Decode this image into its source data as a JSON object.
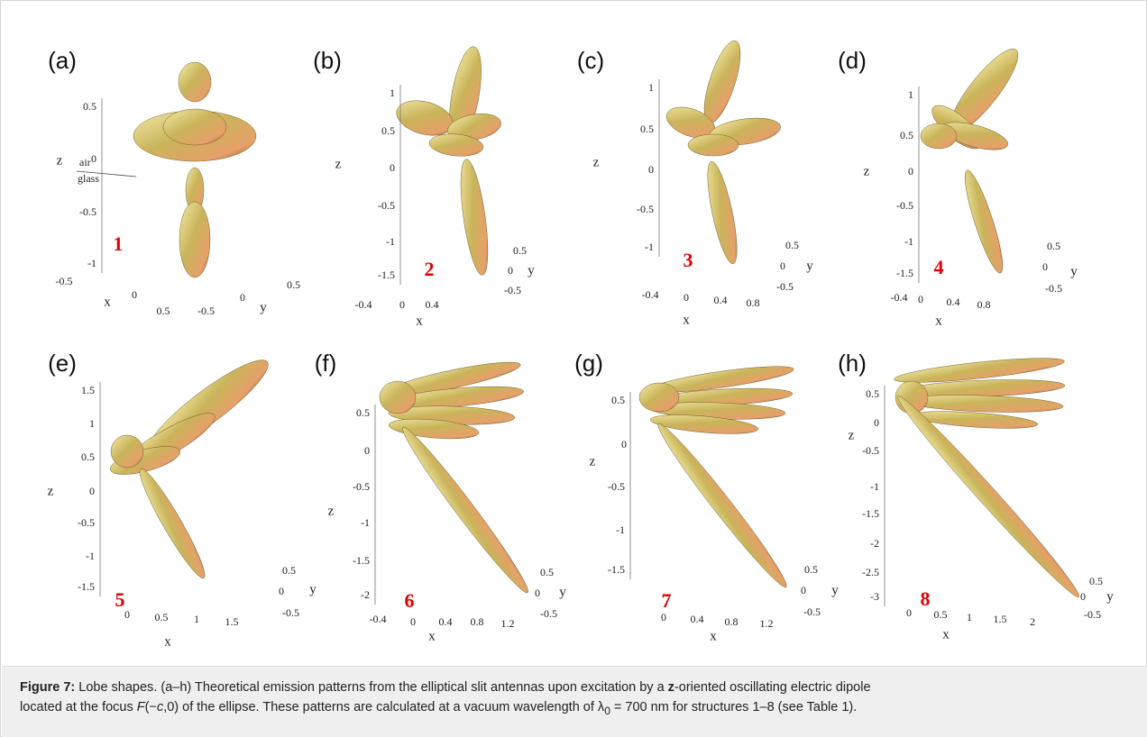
{
  "figure": {
    "panels": [
      {
        "label": "(a)",
        "number": "1",
        "z_label": "z",
        "x_label": "x",
        "y_label": "y",
        "z_ticks": [
          "0.5",
          "0",
          "-0.5",
          "-1"
        ],
        "x_ticks": [
          "-0.5",
          "0",
          "0.5"
        ],
        "y_ticks": [
          "-0.5",
          "0",
          "0.5"
        ],
        "annotations": [
          "air",
          "glass"
        ]
      },
      {
        "label": "(b)",
        "number": "2",
        "z_label": "z",
        "x_label": "x",
        "y_label": "y",
        "z_ticks": [
          "1",
          "0.5",
          "0",
          "-0.5",
          "-1",
          "-1.5"
        ],
        "x_ticks": [
          "-0.4",
          "0",
          "0.4"
        ],
        "y_ticks": [
          "0.5",
          "0",
          "-0.5"
        ]
      },
      {
        "label": "(c)",
        "number": "3",
        "z_label": "z",
        "x_label": "x",
        "y_label": "y",
        "z_ticks": [
          "1",
          "0.5",
          "0",
          "-0.5",
          "-1"
        ],
        "x_ticks": [
          "-0.4",
          "0",
          "0.4",
          "0.8"
        ],
        "y_ticks": [
          "0.5",
          "0",
          "-0.5"
        ]
      },
      {
        "label": "(d)",
        "number": "4",
        "z_label": "z",
        "x_label": "x",
        "y_label": "y",
        "z_ticks": [
          "1",
          "0.5",
          "0",
          "-0.5",
          "-1",
          "-1.5"
        ],
        "x_ticks": [
          "-0.4",
          "0",
          "0.4",
          "0.8"
        ],
        "y_ticks": [
          "0.5",
          "0",
          "-0.5"
        ]
      },
      {
        "label": "(e)",
        "number": "5",
        "z_label": "z",
        "x_label": "x",
        "y_label": "y",
        "z_ticks": [
          "1.5",
          "1",
          "0.5",
          "0",
          "-0.5",
          "-1",
          "-1.5"
        ],
        "x_ticks": [
          "0",
          "0.5",
          "1",
          "1.5"
        ],
        "y_ticks": [
          "0.5",
          "0",
          "-0.5"
        ]
      },
      {
        "label": "(f)",
        "number": "6",
        "z_label": "z",
        "x_label": "x",
        "y_label": "y",
        "z_ticks": [
          "0.5",
          "0",
          "-0.5",
          "-1",
          "-1.5",
          "-2"
        ],
        "x_ticks": [
          "-0.4",
          "0",
          "0.4",
          "0.8",
          "1.2"
        ],
        "y_ticks": [
          "0.5",
          "0",
          "-0.5"
        ]
      },
      {
        "label": "(g)",
        "number": "7",
        "z_label": "z",
        "x_label": "x",
        "y_label": "y",
        "z_ticks": [
          "0.5",
          "0",
          "-0.5",
          "-1",
          "-1.5"
        ],
        "x_ticks": [
          "0",
          "0.4",
          "0.8",
          "1.2"
        ],
        "y_ticks": [
          "0.5",
          "0",
          "-0.5"
        ]
      },
      {
        "label": "(h)",
        "number": "8",
        "z_label": "z",
        "x_label": "x",
        "y_label": "y",
        "z_ticks": [
          "0.5",
          "0",
          "-0.5",
          "-1",
          "-1.5",
          "-2",
          "-2.5",
          "-3"
        ],
        "x_ticks": [
          "0",
          "0.5",
          "1",
          "1.5",
          "2"
        ],
        "y_ticks": [
          "0.5",
          "0",
          "-0.5"
        ]
      }
    ]
  },
  "caption": {
    "lines": [
      [
        "Figure 7:",
        " Lobe shapes. (a–h) Theoretical emission patterns from the elliptical slit antennas upon excitation by a ",
        "z",
        "-oriented oscillating electric dipole"
      ],
      [
        "located at the focus ",
        "F",
        "(−",
        "c",
        ",0) of the ellipse. These patterns are calculated at a vacuum wavelength of λ",
        "0",
        " = 700 nm for structures 1–8 (see Table 1)."
      ]
    ]
  }
}
